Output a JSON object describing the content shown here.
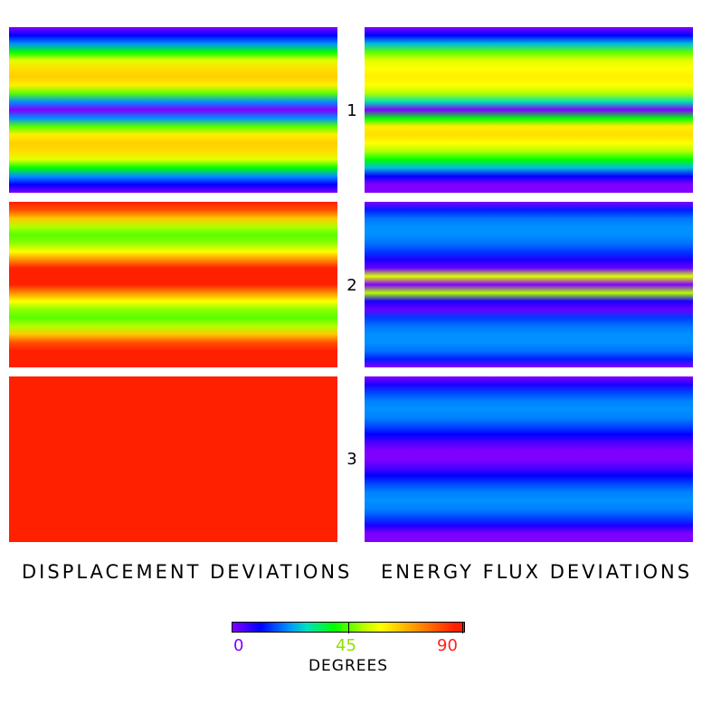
{
  "chart_data": {
    "type": "heatmap",
    "colorbar": {
      "title": "DEGREES",
      "range": [
        0,
        90
      ],
      "ticks": [
        {
          "value": 0,
          "label": "0",
          "color": "#8000ff"
        },
        {
          "value": 45,
          "label": "45",
          "color": "#90e000"
        },
        {
          "value": 90,
          "label": "90",
          "color": "#ff2020"
        }
      ],
      "colormap": "rainbow (violet→blue→cyan→green→yellow→orange→red)"
    },
    "columns": [
      {
        "title": "DISPLACEMENT DEVIATIONS"
      },
      {
        "title": "ENERGY FLUX DEVIATIONS"
      }
    ],
    "rows": [
      {
        "label": "1"
      },
      {
        "label": "2"
      },
      {
        "label": "3"
      }
    ],
    "panels": [
      {
        "column": 0,
        "row": 0,
        "profile_degrees": [
          0,
          10,
          20,
          40,
          55,
          62,
          64,
          60,
          45,
          20,
          0,
          20,
          45,
          60,
          64,
          62,
          55,
          40,
          20,
          10,
          0
        ]
      },
      {
        "column": 1,
        "row": 0,
        "profile_degrees": [
          0,
          10,
          25,
          45,
          55,
          58,
          60,
          58,
          50,
          30,
          0,
          40,
          60,
          62,
          58,
          50,
          40,
          25,
          10,
          0,
          0
        ]
      },
      {
        "column": 0,
        "row": 1,
        "profile_degrees": [
          88,
          80,
          65,
          50,
          45,
          48,
          58,
          72,
          86,
          90,
          86,
          72,
          58,
          48,
          45,
          50,
          65,
          80,
          88,
          90,
          90
        ]
      },
      {
        "column": 1,
        "row": 1,
        "profile_degrees": [
          0,
          12,
          18,
          20,
          20,
          18,
          14,
          8,
          2,
          55,
          0,
          50,
          8,
          2,
          14,
          18,
          20,
          20,
          18,
          12,
          0
        ]
      },
      {
        "column": 0,
        "row": 2,
        "profile_degrees": [
          90,
          90,
          90,
          90,
          90,
          90,
          90,
          90,
          90,
          90,
          90,
          90,
          90,
          90,
          90,
          90,
          90,
          90,
          90,
          90,
          90
        ]
      },
      {
        "column": 1,
        "row": 2,
        "profile_degrees": [
          0,
          8,
          15,
          19,
          20,
          19,
          15,
          10,
          4,
          0,
          0,
          4,
          10,
          15,
          19,
          20,
          19,
          15,
          8,
          0,
          0
        ]
      }
    ]
  }
}
